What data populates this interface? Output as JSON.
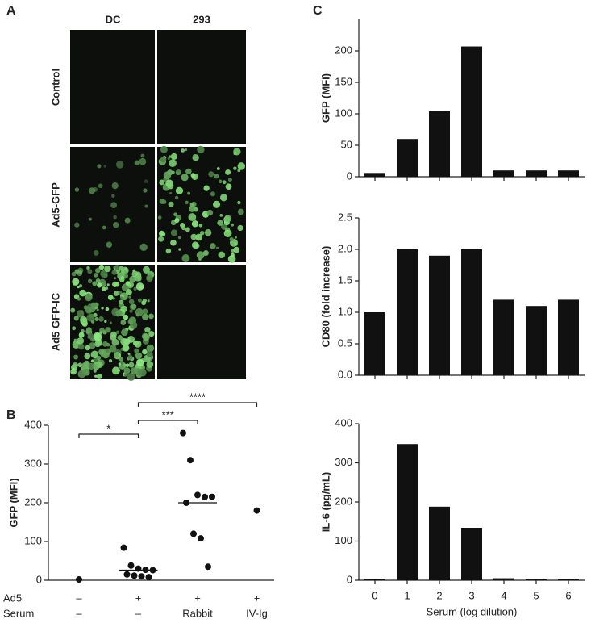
{
  "panel_labels": [
    "A",
    "B",
    "C"
  ],
  "micrographs": {
    "columns": [
      "DC",
      "293"
    ],
    "rows": [
      "Control",
      "Ad5-GFP",
      "Ad5 GFP-IC"
    ]
  },
  "chart_data": [
    {
      "type": "strip",
      "ylabel": "GFP (MFI)",
      "color": "#111111",
      "x_rows": [
        {
          "name": "Ad5",
          "labels": [
            "–",
            "+",
            "+",
            "+"
          ]
        },
        {
          "name": "Serum",
          "labels": [
            "–",
            "–",
            "Rabbit",
            "IV-Ig"
          ]
        }
      ],
      "groups": [
        [
          2
        ],
        [
          84,
          38,
          30,
          27,
          26,
          15,
          12,
          10,
          8
        ],
        [
          380,
          310,
          220,
          215,
          215,
          200,
          120,
          108,
          35
        ],
        [
          180
        ]
      ],
      "medians": [
        null,
        26,
        200,
        null
      ],
      "significance": [
        "*",
        "***",
        "****"
      ],
      "ylim": [
        0,
        400
      ],
      "yticks": [
        0,
        100,
        200,
        300,
        400
      ]
    },
    {
      "type": "bar",
      "ylabel": "GFP (MFI)",
      "color": "#111111",
      "values": [
        6,
        60,
        104,
        207,
        10,
        10,
        10
      ],
      "ylim": [
        0,
        250
      ],
      "yticks": [
        0,
        50,
        100,
        150,
        200
      ]
    },
    {
      "type": "bar",
      "ylabel": "CD80 (fold increase)",
      "color": "#111111",
      "values": [
        1.0,
        2.0,
        1.9,
        2.0,
        1.2,
        1.1,
        1.2
      ],
      "ylim": [
        0,
        2.5
      ],
      "yticks": [
        {
          "value": 0,
          "label": "0.0"
        },
        0.5,
        {
          "value": 1,
          "label": "1.0"
        },
        1.5,
        {
          "value": 2,
          "label": "2.0"
        },
        2.5
      ]
    },
    {
      "type": "bar",
      "ylabel": "IL-6 (pg/mL)",
      "xlabel": "Serum (log dilution)",
      "color": "#111111",
      "categories": [
        "0",
        "1",
        "2",
        "3",
        "4",
        "5",
        "6"
      ],
      "values": [
        3,
        348,
        188,
        134,
        5,
        2,
        4
      ],
      "ylim": [
        0,
        400
      ],
      "yticks": [
        0,
        100,
        200,
        300,
        400
      ]
    }
  ]
}
